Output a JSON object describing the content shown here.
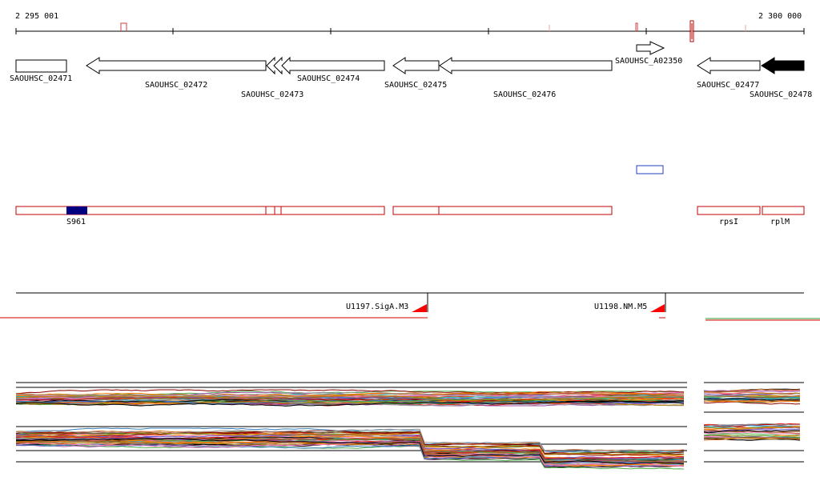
{
  "ruler": {
    "start_label": "2 295 001",
    "end_label": "2 300 000"
  },
  "genes": [
    {
      "id": "SAOUHSC_02471",
      "strand": "+",
      "fill": "white"
    },
    {
      "id": "SAOUHSC_02472",
      "strand": "-",
      "fill": "white"
    },
    {
      "id": "SAOUHSC_02473",
      "strand": "-",
      "fill": "white"
    },
    {
      "id": "SAOUHSC_02474",
      "strand": "-",
      "fill": "white"
    },
    {
      "id": "SAOUHSC_02475",
      "strand": "-",
      "fill": "white"
    },
    {
      "id": "SAOUHSC_02476",
      "strand": "-",
      "fill": "white"
    },
    {
      "id": "SAOUHSC_A02350",
      "strand": "+",
      "fill": "white"
    },
    {
      "id": "SAOUHSC_02477",
      "strand": "-",
      "fill": "white"
    },
    {
      "id": "SAOUHSC_02478",
      "strand": "-",
      "fill": "black"
    }
  ],
  "features": {
    "segment_labels": [
      "S961",
      "rpsI",
      "rplM"
    ]
  },
  "promoters": [
    {
      "id": "U1197.SigA.M3"
    },
    {
      "id": "U1198.NM.M5"
    }
  ],
  "colors": {
    "ruler_line": "#000000",
    "feature_outline": "#c00000",
    "srna_fill": "#000080",
    "blue_box": "#1f3fbf",
    "promoter_triangle": "#ff0000",
    "coverage_red": "#d00000",
    "coverage_green": "#2ca02c",
    "profile_palette": [
      "#e41a1c",
      "#377eb8",
      "#4daf4a",
      "#984ea3",
      "#ff7f00",
      "#a65628",
      "#f781bf",
      "#999999",
      "#000000",
      "#b8860b",
      "#17becf",
      "#8b0000",
      "#556b2f",
      "#d2691e",
      "#6a5acd"
    ]
  }
}
